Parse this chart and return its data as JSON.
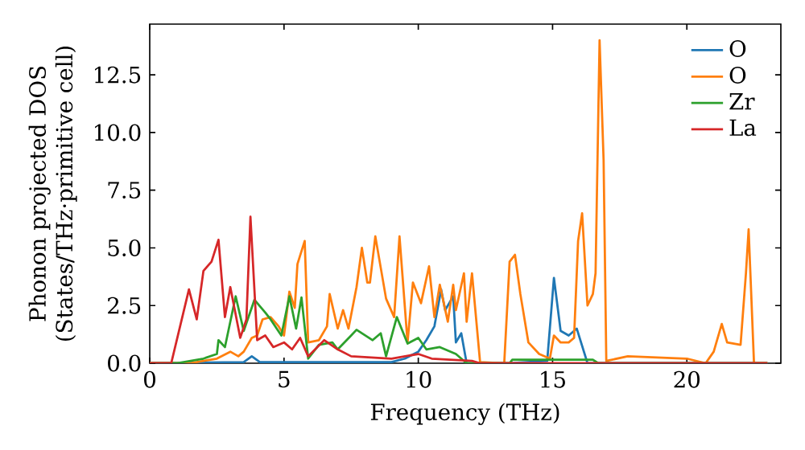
{
  "chart_data": {
    "type": "line",
    "xlabel": "Frequency (THz)",
    "ylabel": "Phonon projected DOS\n(States/THz·primitive cell)",
    "xlim": [
      0,
      23.5
    ],
    "ylim": [
      0,
      14.7
    ],
    "xticks": [
      0,
      5,
      10,
      15,
      20
    ],
    "yticks": [
      {
        "value": 0,
        "label": "0.0"
      },
      {
        "value": 2.5,
        "label": "2.5"
      },
      {
        "value": 5,
        "label": "5.0"
      },
      {
        "value": 7.5,
        "label": "7.5"
      },
      {
        "value": 10,
        "label": "10.0"
      },
      {
        "value": 12.5,
        "label": "12.5"
      }
    ],
    "legend": "top right",
    "grid": false,
    "marker": "none",
    "line_style": "solid",
    "series": [
      {
        "name": "O",
        "color": "#1f77b4",
        "x": [
          0,
          3.5,
          3.8,
          4.1,
          9,
          9.5,
          10,
          10.3,
          10.6,
          10.85,
          11,
          11.3,
          11.4,
          11.6,
          11.8,
          13.3,
          14.8,
          15.05,
          15.3,
          15.6,
          15.9,
          16.3,
          23
        ],
        "values": [
          0,
          0.05,
          0.3,
          0.05,
          0.05,
          0.2,
          0.5,
          1.0,
          1.6,
          3.2,
          2.3,
          2.9,
          0.9,
          1.3,
          0,
          0,
          0.1,
          3.7,
          1.4,
          1.2,
          1.5,
          0,
          0
        ]
      },
      {
        "name": "O",
        "color": "#ff7f0e",
        "x": [
          0,
          1.5,
          2,
          2.5,
          3,
          3.3,
          3.5,
          3.8,
          4,
          4.2,
          4.5,
          4.8,
          5,
          5.2,
          5.4,
          5.5,
          5.77,
          5.9,
          6.3,
          6.6,
          6.7,
          7,
          7.2,
          7.4,
          7.7,
          7.9,
          8.1,
          8.2,
          8.4,
          8.8,
          9.1,
          9.3,
          9.6,
          9.8,
          10.1,
          10.4,
          10.6,
          10.8,
          10.95,
          11.1,
          11.3,
          11.4,
          11.7,
          11.8,
          12,
          12.3,
          13.2,
          13.4,
          13.6,
          13.8,
          14.1,
          14.5,
          14.9,
          15.05,
          15.3,
          15.6,
          15.8,
          15.95,
          16.1,
          16.3,
          16.5,
          16.6,
          16.75,
          16.9,
          17,
          17.8,
          20,
          20.7,
          21,
          21.3,
          21.5,
          22,
          22.2,
          22.3,
          22.5,
          23
        ],
        "values": [
          0,
          0,
          0.1,
          0.2,
          0.5,
          0.3,
          0.5,
          1.1,
          1.2,
          1.9,
          2.0,
          1.6,
          1.2,
          3.1,
          2.4,
          4.3,
          5.3,
          0.9,
          1.0,
          1.6,
          3.0,
          1.5,
          2.3,
          1.5,
          3.3,
          5.0,
          3.5,
          3.5,
          5.5,
          2.8,
          2.0,
          5.5,
          0.9,
          3.5,
          2.6,
          4.2,
          2.0,
          3.4,
          2.6,
          1.8,
          3.4,
          2.3,
          3.9,
          1.8,
          3.9,
          0.05,
          0,
          4.4,
          4.7,
          3.0,
          0.9,
          0.4,
          0.2,
          1.2,
          0.9,
          0.9,
          1.1,
          5.3,
          6.5,
          2.5,
          3.0,
          3.9,
          14.0,
          8.8,
          0.1,
          0.3,
          0.2,
          0,
          0.5,
          1.7,
          0.9,
          0.8,
          3.9,
          5.8,
          0,
          0
        ]
      },
      {
        "name": "Zr",
        "color": "#2ca02c",
        "x": [
          0,
          1,
          2,
          2.5,
          2.56,
          2.8,
          3.2,
          3.5,
          3.9,
          4.3,
          4.5,
          4.9,
          5.2,
          5.45,
          5.65,
          5.9,
          6.3,
          6.8,
          7,
          7.5,
          7.7,
          8.3,
          8.6,
          8.8,
          9.2,
          9.6,
          10,
          10.3,
          10.8,
          11.4,
          11.8,
          13.4,
          13.5,
          15,
          16.5,
          16.7,
          22.6,
          23
        ],
        "values": [
          0,
          0,
          0.2,
          0.4,
          1.0,
          0.7,
          2.9,
          1.4,
          2.75,
          2.2,
          1.9,
          1.2,
          2.9,
          1.5,
          2.85,
          0.2,
          0.8,
          0.9,
          0.6,
          1.2,
          1.45,
          1.0,
          1.3,
          0.3,
          2.0,
          0.85,
          1.1,
          0.6,
          0.7,
          0.4,
          0,
          0,
          0.15,
          0.15,
          0.15,
          0,
          0,
          0
        ]
      },
      {
        "name": "La",
        "color": "#d62728",
        "x": [
          0,
          0.8,
          1.46,
          1.75,
          2.0,
          2.3,
          2.56,
          2.8,
          3.0,
          3.37,
          3.6,
          3.75,
          4.0,
          4.3,
          4.6,
          5.0,
          5.3,
          5.6,
          5.9,
          6.5,
          7.0,
          7.5,
          9,
          10,
          10.5,
          12,
          12.3,
          23
        ],
        "values": [
          0,
          0,
          3.2,
          1.9,
          4.0,
          4.4,
          5.35,
          2.0,
          3.3,
          1.1,
          1.9,
          6.35,
          1.0,
          1.2,
          0.7,
          0.9,
          0.6,
          1.1,
          0.3,
          1.0,
          0.6,
          0.3,
          0.2,
          0.4,
          0.2,
          0.1,
          0,
          0
        ]
      }
    ]
  }
}
